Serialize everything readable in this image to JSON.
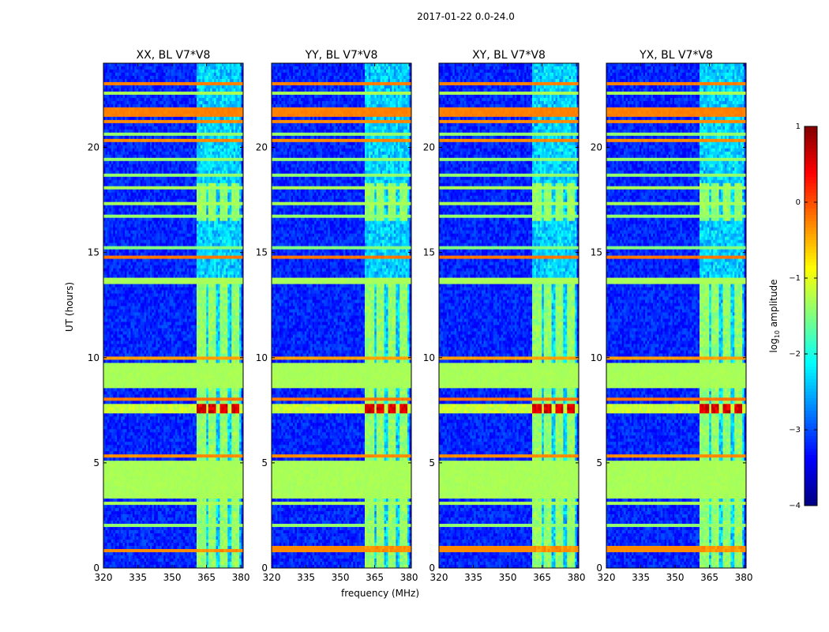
{
  "chart_data": {
    "type": "heatmap",
    "suptitle": "2017-01-22 0.0-24.0",
    "xlabel": "frequency (MHz)",
    "ylabel": "UT (hours)",
    "colorbar_label": "log10 amplitude",
    "colorbar_label_base": "log",
    "colorbar_label_sub": "10",
    "colorbar_label_rest": " amplitude",
    "colorbar_range": [
      -4,
      1
    ],
    "colorbar_ticks": [
      "1",
      "0",
      "−1",
      "−2",
      "−3",
      "−4"
    ],
    "colorbar_tick_values": [
      1,
      0,
      -1,
      -2,
      -3,
      -4
    ],
    "colormap": "jet",
    "xlim": [
      320,
      381
    ],
    "ylim": [
      0,
      24
    ],
    "x_ticks": [
      "320",
      "335",
      "350",
      "365",
      "380"
    ],
    "x_tick_values": [
      320,
      335,
      350,
      365,
      380
    ],
    "y_ticks": [
      "0",
      "5",
      "10",
      "15",
      "20"
    ],
    "y_tick_values": [
      0,
      5,
      10,
      15,
      20
    ],
    "panels": [
      {
        "title": "XX, BL V7*V8",
        "peak_band_ut": [
          7.3,
          7.8
        ],
        "low_band_ut": [
          0.7,
          0.95
        ]
      },
      {
        "title": "YY, BL V7*V8",
        "peak_band_ut": [
          7.35,
          7.8
        ],
        "low_band_ut": [
          0.8,
          1.0
        ]
      },
      {
        "title": "XY, BL V7*V8",
        "peak_band_ut": [
          7.3,
          7.8
        ],
        "low_band_ut": [
          0.75,
          1.0
        ]
      },
      {
        "title": "YX, BL V7*V8",
        "peak_band_ut": [
          7.3,
          7.8
        ],
        "low_band_ut": [
          0.75,
          1.0
        ]
      }
    ],
    "flagged_bands_ut": [
      [
        3.3,
        5.1
      ],
      [
        8.6,
        9.7
      ]
    ],
    "strong_channel_bands_mhz": [
      [
        361,
        365
      ],
      [
        366,
        369.5
      ],
      [
        371,
        374.5
      ],
      [
        376,
        379.5
      ]
    ],
    "background_level_log10": -3.2,
    "flagged_level_log10": -1.3
  }
}
